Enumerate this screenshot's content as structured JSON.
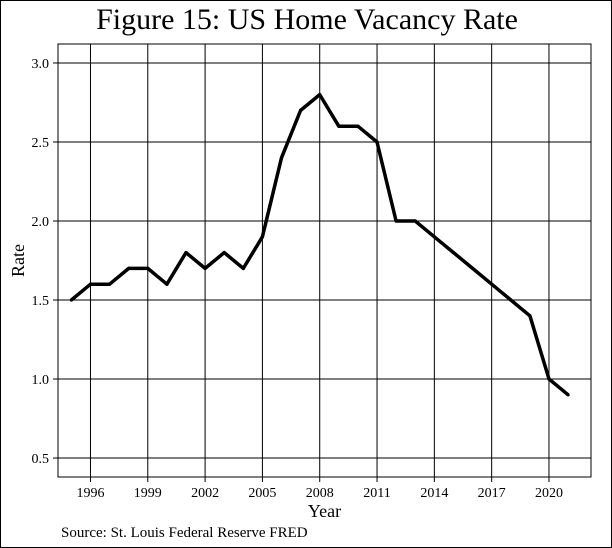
{
  "chart_data": {
    "type": "line",
    "title": "Figure 15: US Home Vacancy Rate",
    "xlabel": "Year",
    "ylabel": "Rate",
    "source": "Source: St. Louis Federal Reserve FRED",
    "x": [
      1995,
      1996,
      1997,
      1998,
      1999,
      2000,
      2001,
      2002,
      2003,
      2004,
      2005,
      2006,
      2007,
      2008,
      2009,
      2010,
      2011,
      2012,
      2013,
      2014,
      2015,
      2016,
      2017,
      2018,
      2019,
      2020,
      2021
    ],
    "series": [
      {
        "values": [
          1.5,
          1.6,
          1.6,
          1.7,
          1.7,
          1.6,
          1.8,
          1.7,
          1.8,
          1.7,
          1.9,
          2.4,
          2.7,
          2.8,
          2.6,
          2.6,
          2.5,
          2.0,
          2.0,
          1.9,
          1.8,
          1.7,
          1.6,
          1.5,
          1.4,
          1.0,
          0.9
        ],
        "color": "#000000"
      }
    ],
    "xticks": [
      1996,
      1999,
      2002,
      2005,
      2008,
      2011,
      2014,
      2017,
      2020
    ],
    "yticks": [
      0.5,
      1.0,
      1.5,
      2.0,
      2.5,
      3.0
    ],
    "xlim": [
      1994.3,
      2022.2
    ],
    "ylim": [
      0.38,
      3.12
    ],
    "grid": true,
    "legend": "none"
  }
}
